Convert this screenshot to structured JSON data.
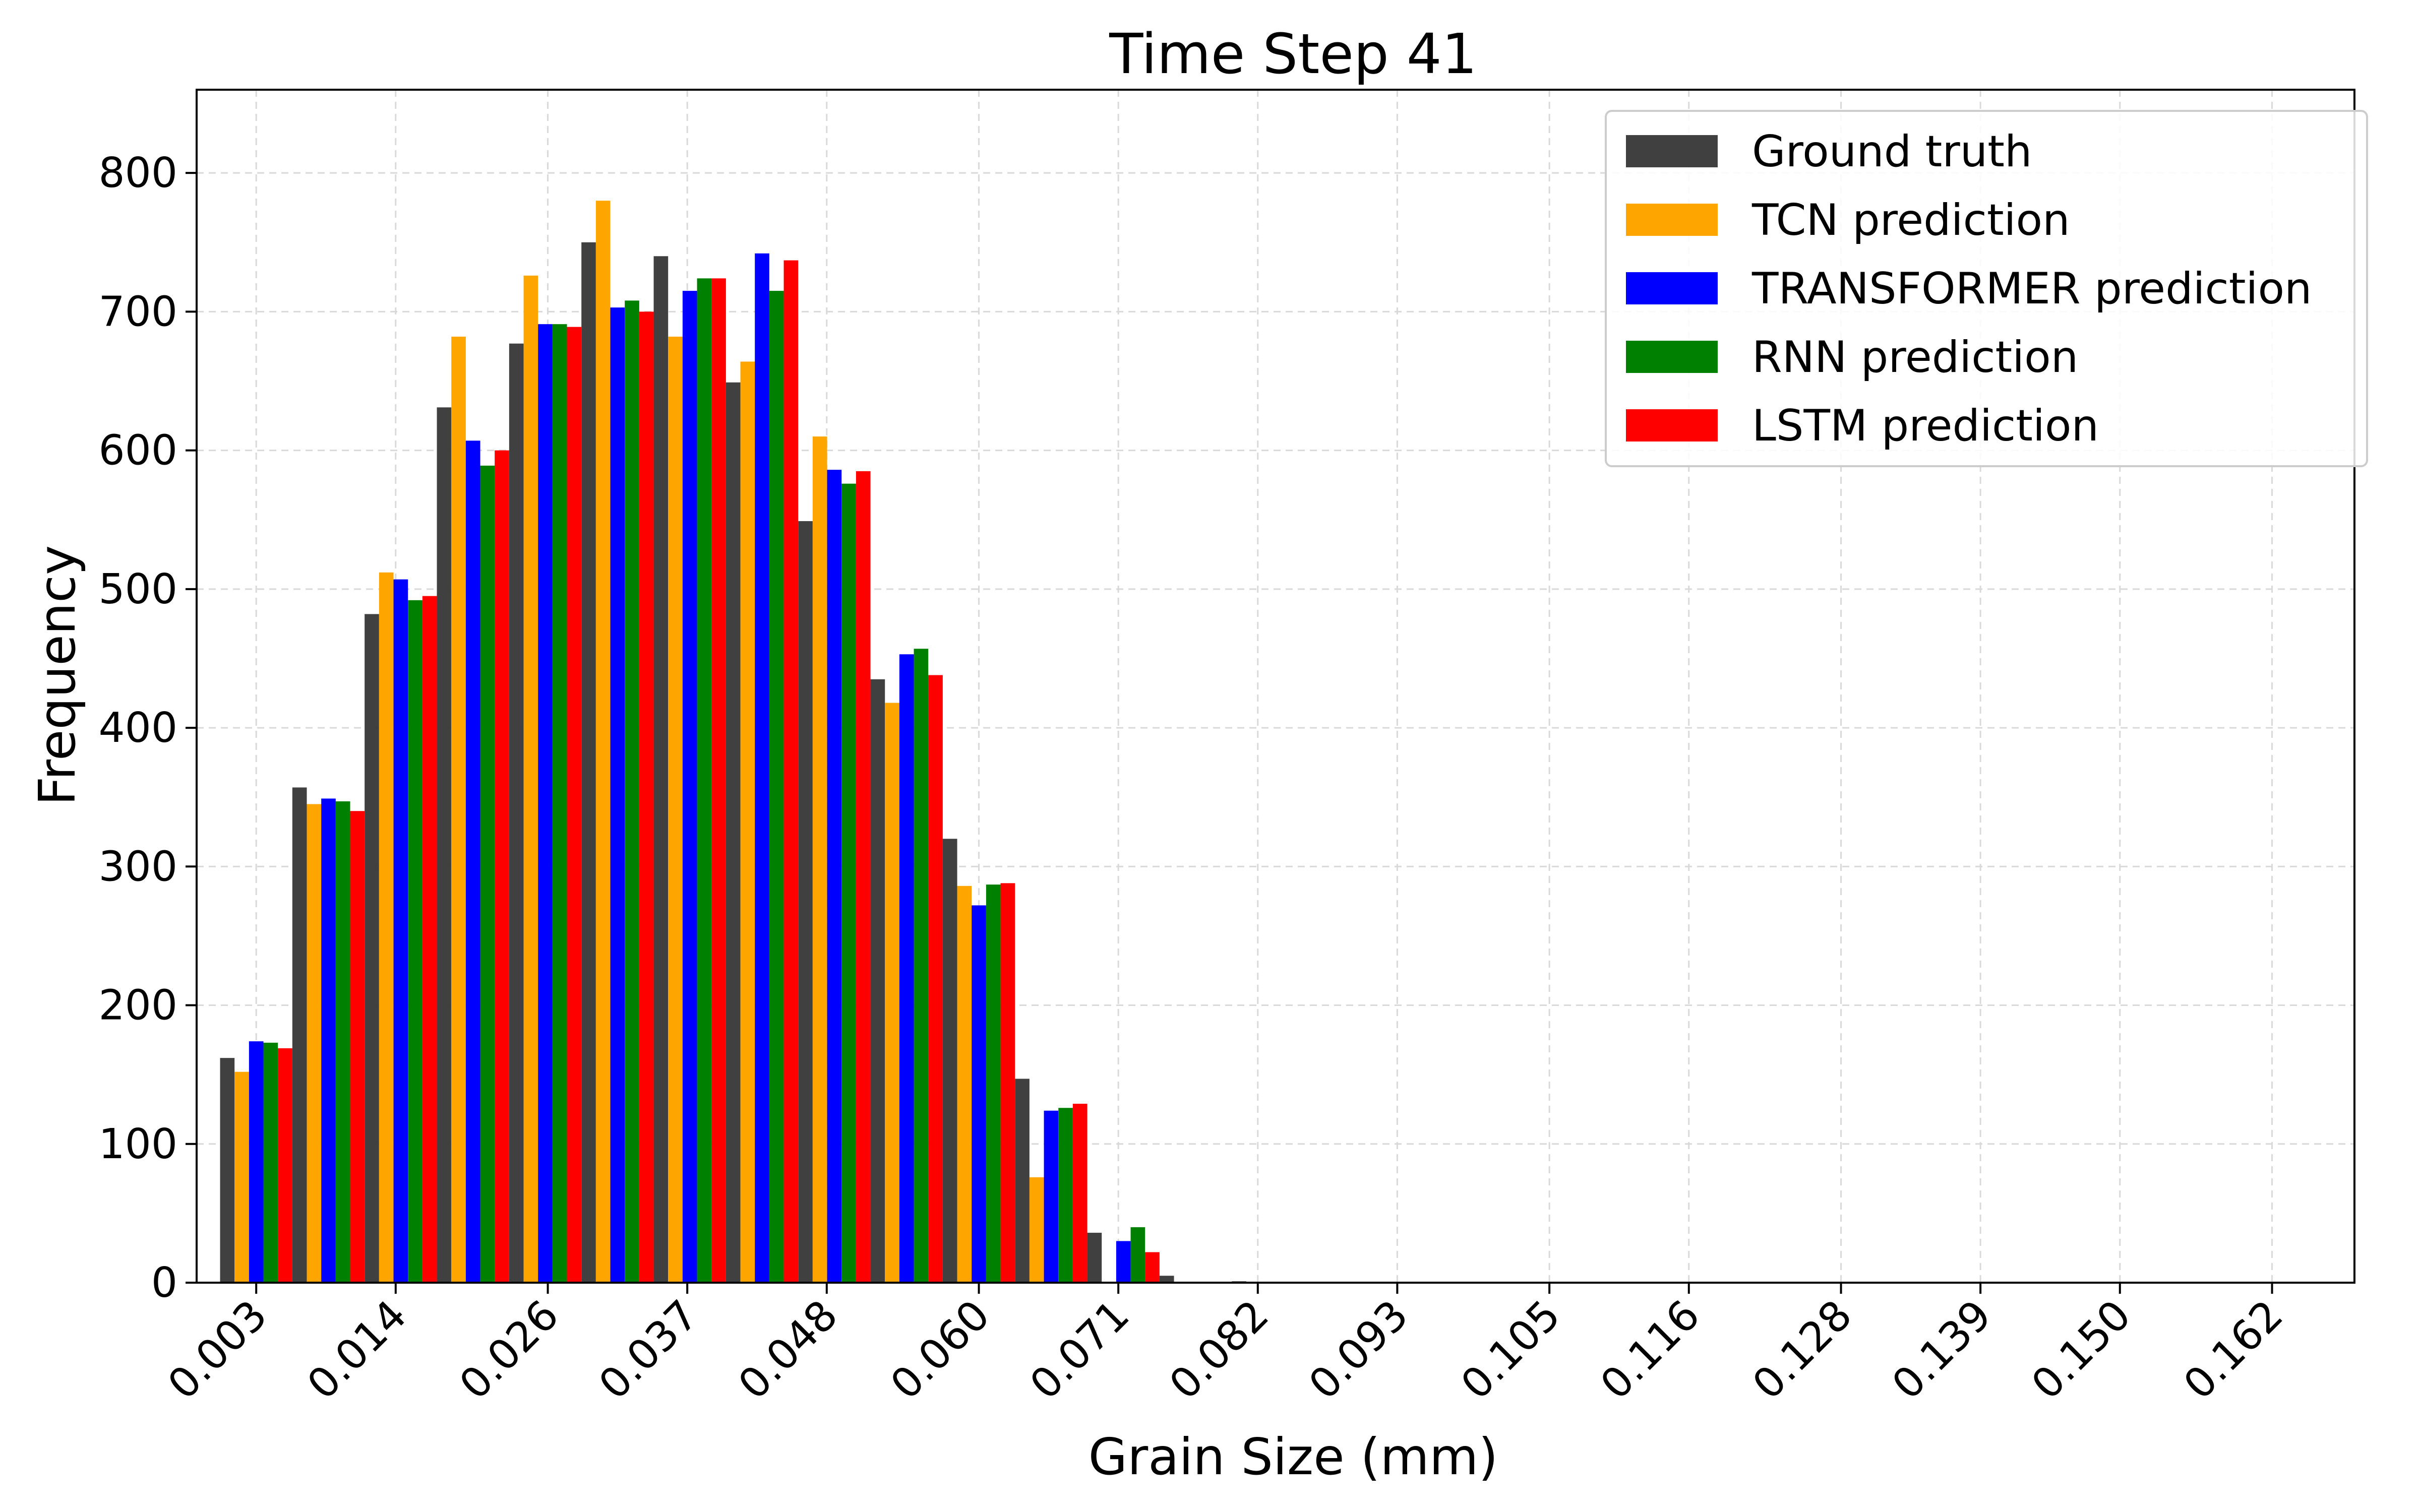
{
  "chart_data": {
    "type": "bar",
    "title": "Time Step 41",
    "xlabel": "Grain Size (mm)",
    "ylabel": "Frequency",
    "ylim": [
      0,
      860
    ],
    "yticks": [
      0,
      100,
      200,
      300,
      400,
      500,
      600,
      700,
      800
    ],
    "xticks": [
      "0.003",
      "0.014",
      "0.026",
      "0.037",
      "0.048",
      "0.060",
      "0.071",
      "0.082",
      "0.093",
      "0.105",
      "0.116",
      "0.128",
      "0.139",
      "0.150",
      "0.162"
    ],
    "grid": true,
    "legend_position": "top-right",
    "x_start": 0.003,
    "bin_width": 0.0057,
    "series": [
      {
        "name": "Ground truth",
        "color": "#404040",
        "values": [
          162,
          357,
          482,
          631,
          677,
          750,
          740,
          649,
          549,
          435,
          320,
          147,
          36,
          5,
          1,
          0,
          0,
          0,
          0,
          0,
          0,
          0,
          0,
          0,
          0,
          0,
          0,
          0,
          0
        ]
      },
      {
        "name": "TCN prediction",
        "color": "#FFA500",
        "values": [
          152,
          345,
          512,
          682,
          726,
          780,
          682,
          664,
          610,
          418,
          286,
          76,
          0,
          0,
          0,
          0,
          0,
          0,
          0,
          0,
          0,
          0,
          0,
          0,
          0,
          0,
          0,
          0,
          0
        ]
      },
      {
        "name": "TRANSFORMER prediction",
        "color": "#0000FF",
        "values": [
          174,
          349,
          507,
          607,
          691,
          703,
          715,
          742,
          586,
          453,
          272,
          124,
          30,
          0,
          0,
          0,
          0,
          0,
          0,
          0,
          0,
          0,
          0,
          0,
          0,
          0,
          0,
          0,
          0
        ]
      },
      {
        "name": "RNN prediction",
        "color": "#008000",
        "values": [
          173,
          347,
          492,
          589,
          691,
          708,
          724,
          715,
          576,
          457,
          287,
          126,
          40,
          0,
          0,
          0,
          0,
          0,
          0,
          0,
          0,
          0,
          0,
          0,
          0,
          0,
          0,
          0,
          0
        ]
      },
      {
        "name": "LSTM prediction",
        "color": "#FF0000",
        "values": [
          169,
          340,
          495,
          600,
          689,
          700,
          724,
          737,
          585,
          438,
          288,
          129,
          22,
          0,
          0,
          0,
          0,
          0,
          0,
          0,
          0,
          0,
          0,
          0,
          0,
          0,
          0,
          0,
          0
        ]
      }
    ]
  }
}
